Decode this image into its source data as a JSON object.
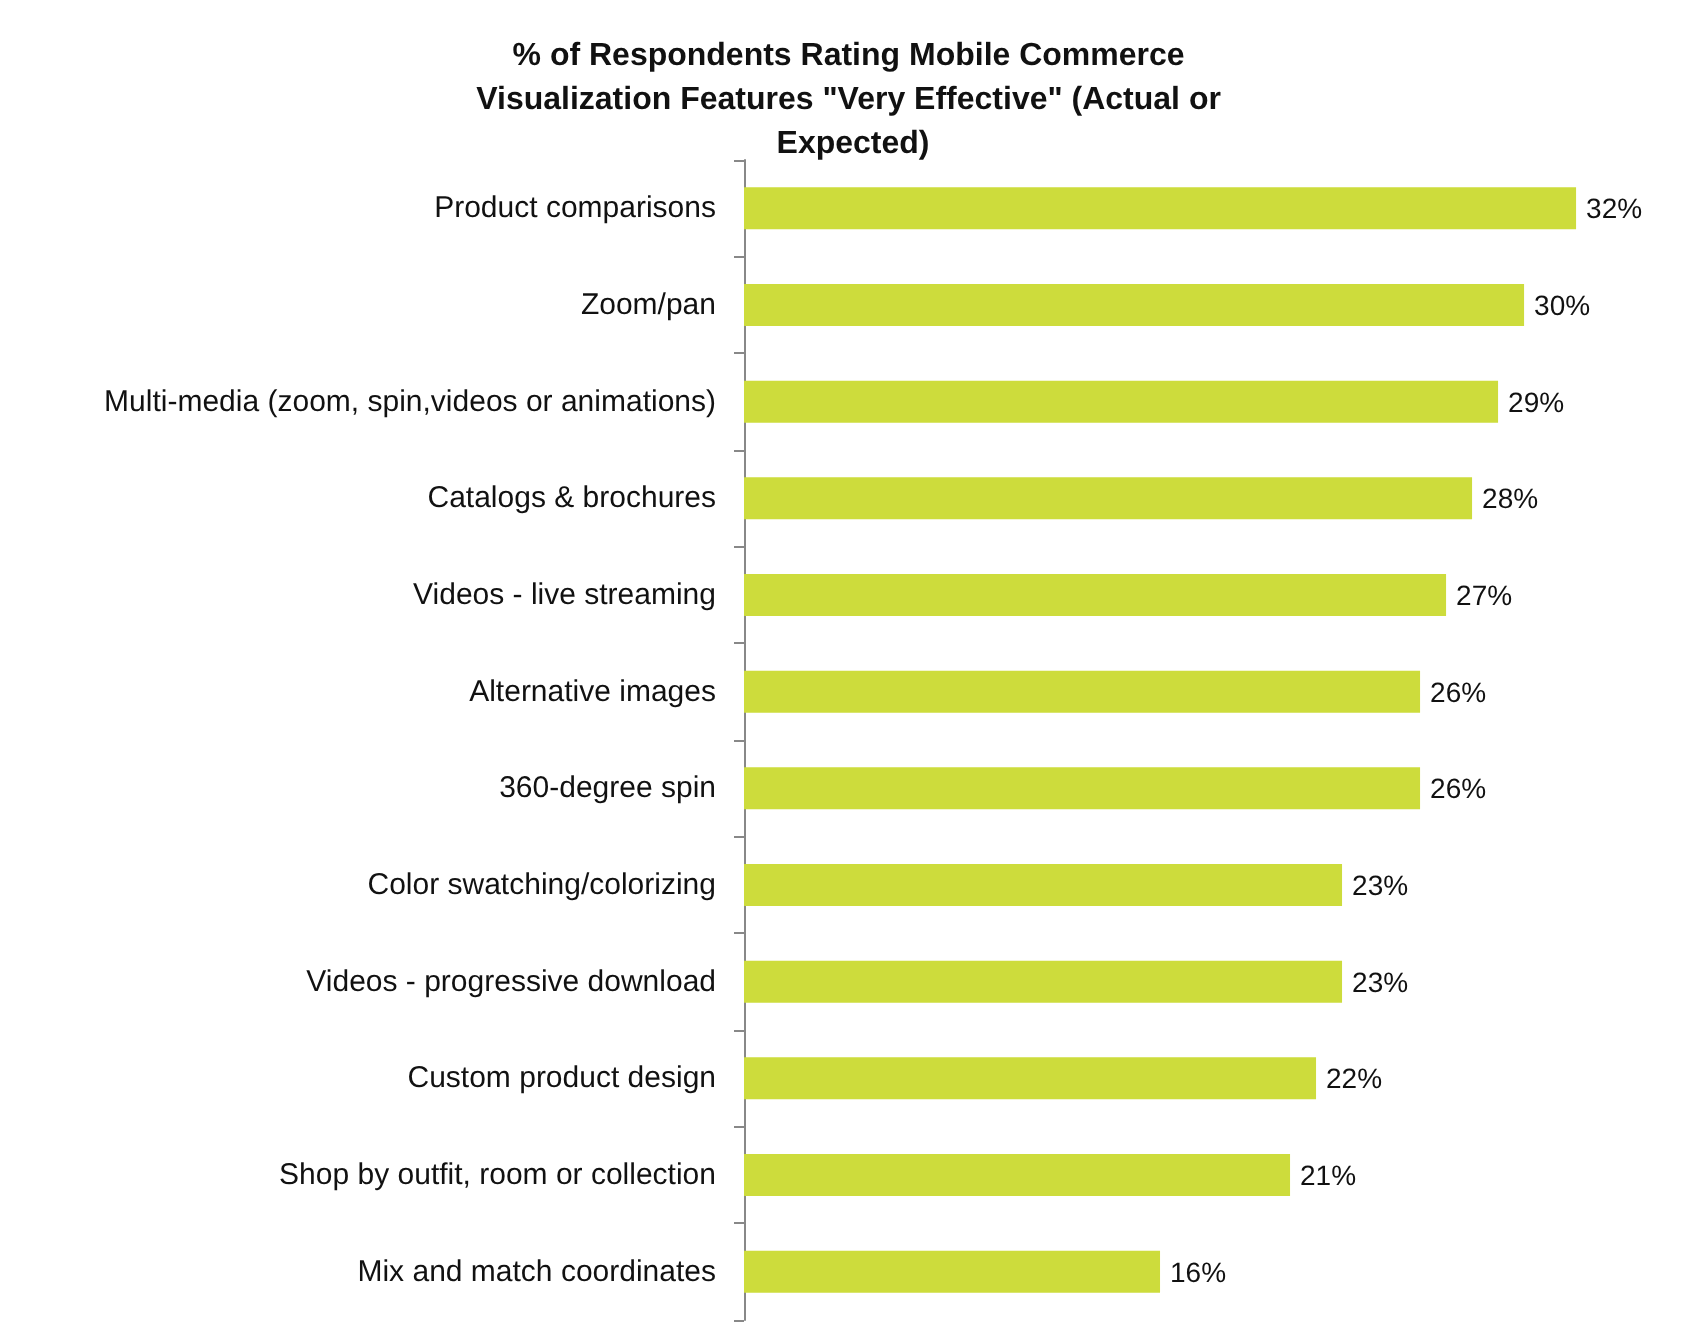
{
  "chart_data": {
    "type": "bar",
    "orientation": "horizontal",
    "title": "% of Respondents Rating Mobile Commerce Visualization Features \"Very Effective\" (Actual or Expected)",
    "categories": [
      "Product comparisons",
      "Zoom/pan",
      "Multi-media (zoom, spin,videos or animations)",
      "Catalogs & brochures",
      "Videos - live streaming",
      "Alternative images",
      "360-degree spin",
      "Color swatching/colorizing",
      "Videos - progressive download",
      "Custom product design",
      "Shop by outfit, room or collection",
      "Mix and match coordinates"
    ],
    "values": [
      32,
      30,
      29,
      28,
      27,
      26,
      26,
      23,
      23,
      22,
      21,
      16
    ],
    "value_labels": [
      "32%",
      "30%",
      "29%",
      "28%",
      "27%",
      "26%",
      "26%",
      "23%",
      "23%",
      "22%",
      "21%",
      "16%"
    ],
    "color": "#cddc3c",
    "grid": false
  }
}
